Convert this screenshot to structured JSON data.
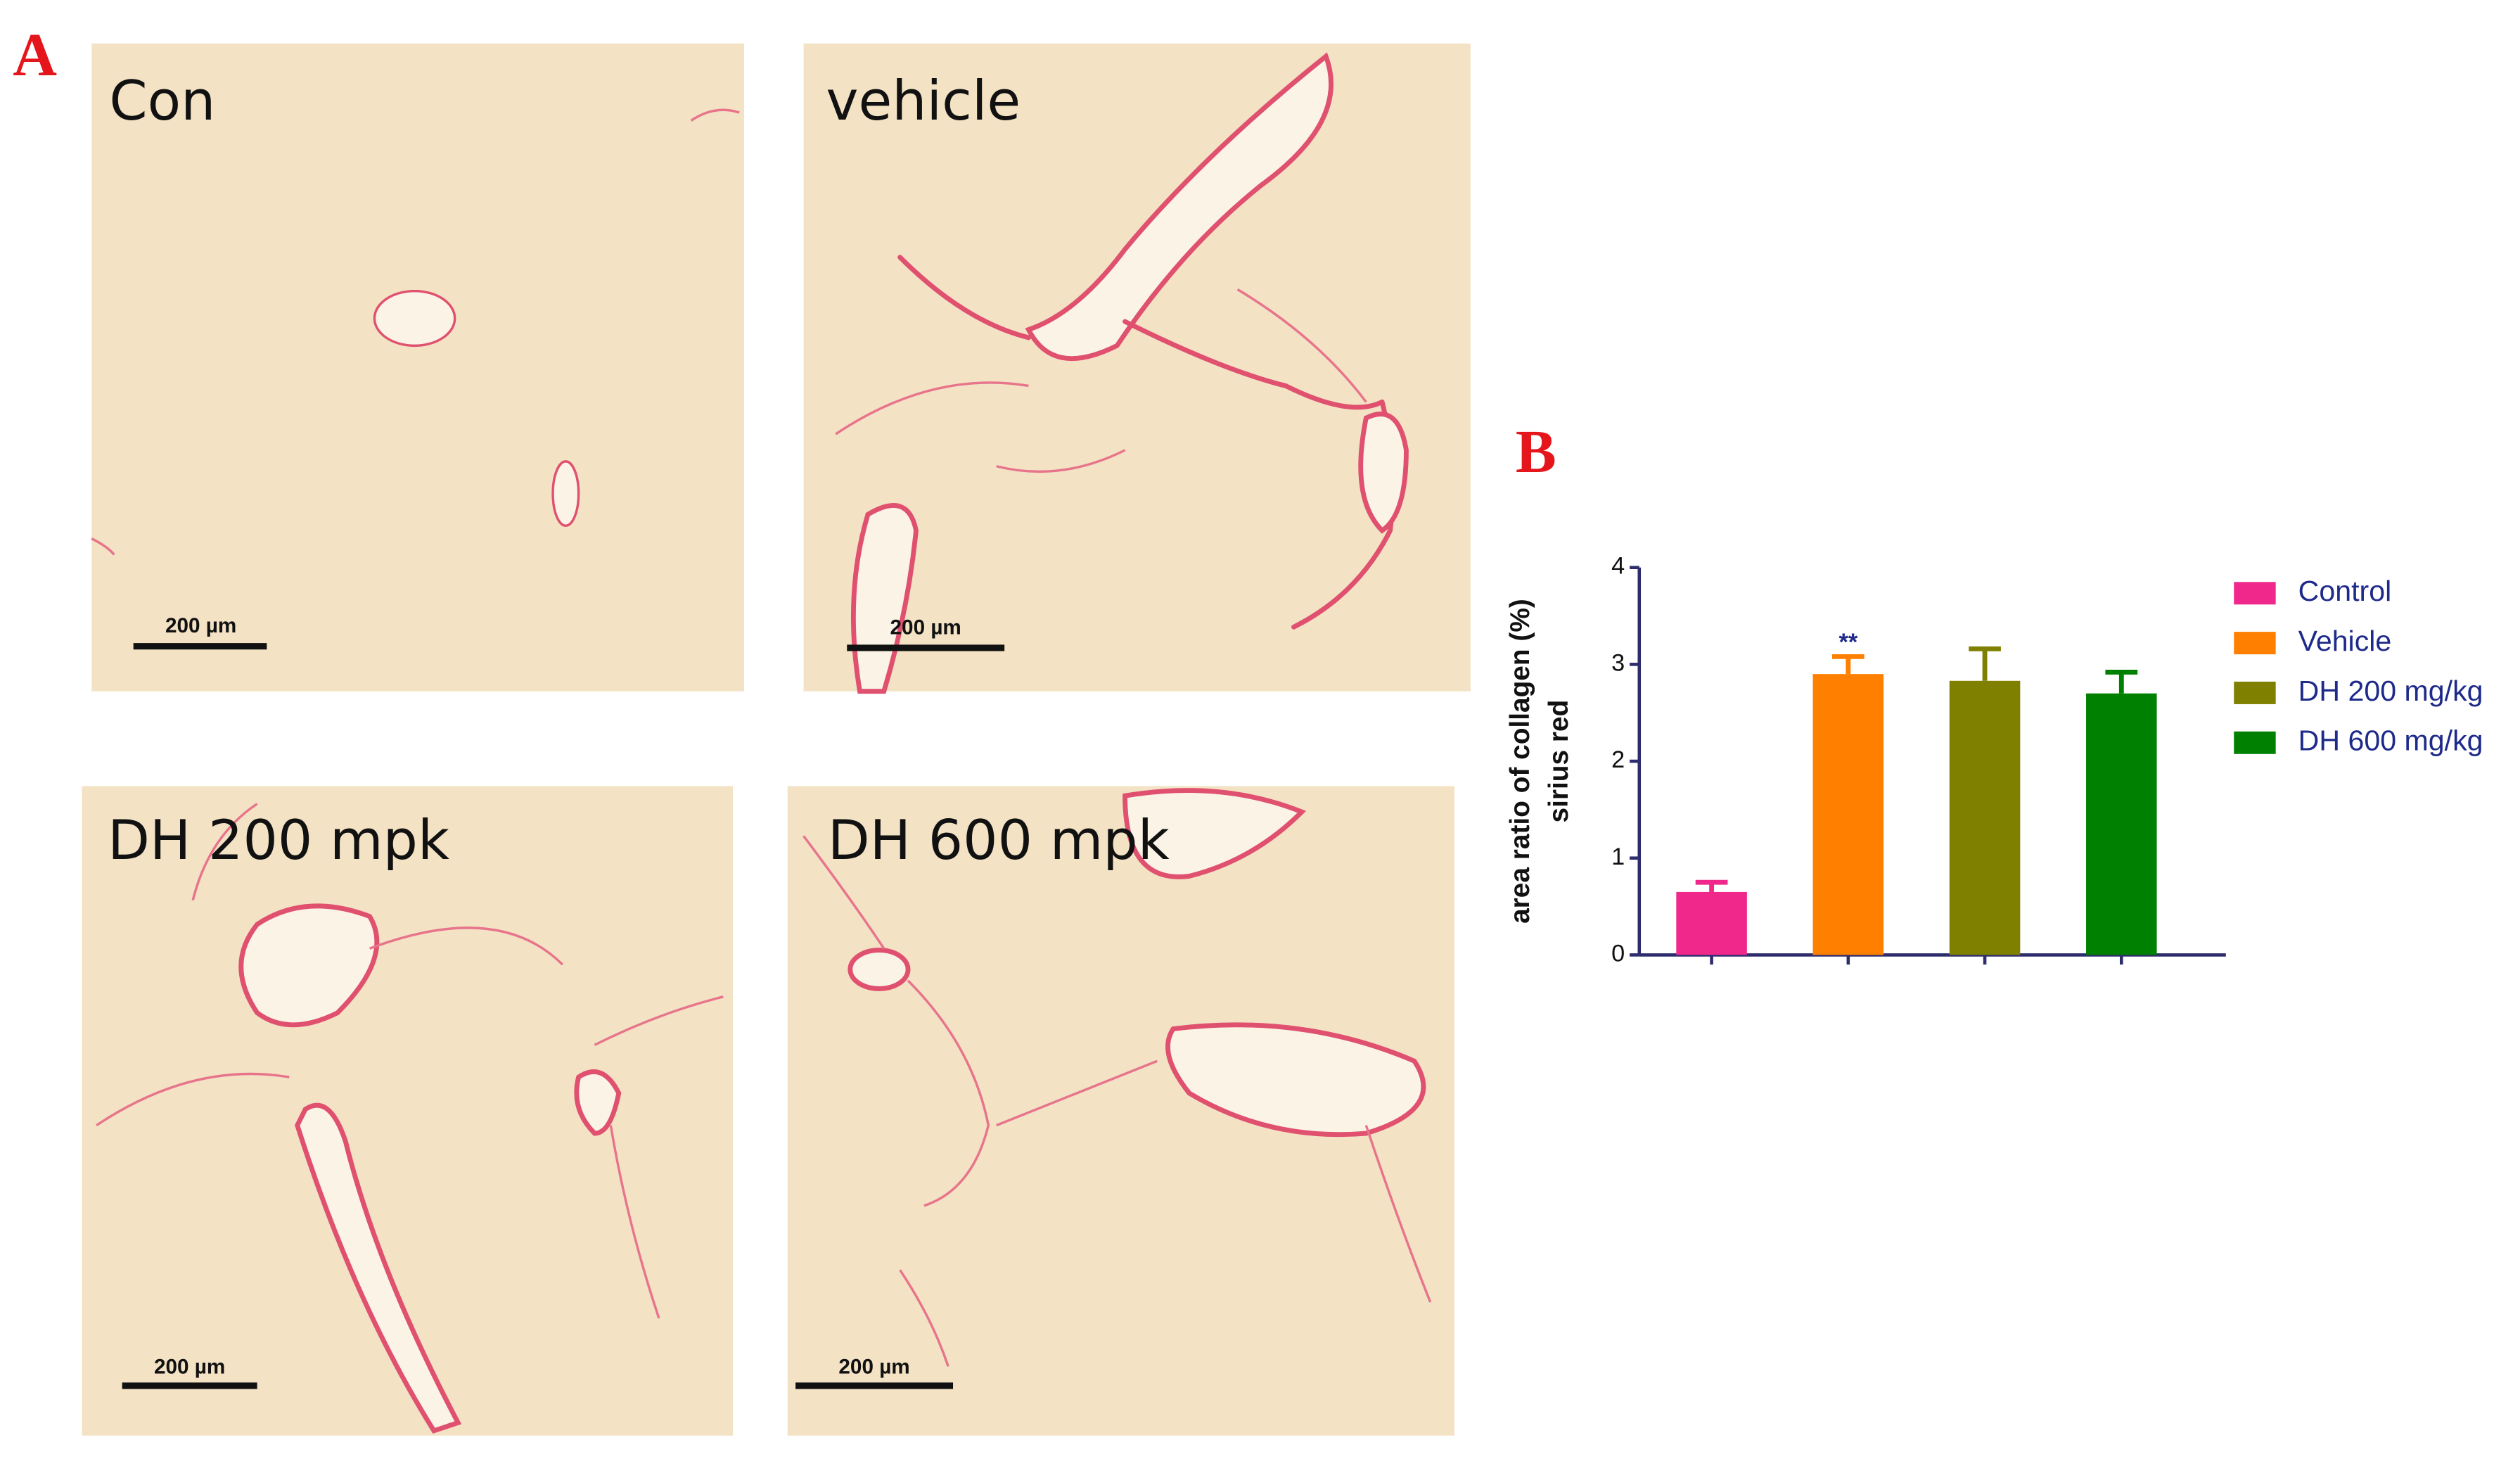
{
  "panel_a": {
    "label": "A",
    "images": [
      {
        "label": "Con",
        "scale_bar": "200 µm"
      },
      {
        "label": "vehicle",
        "scale_bar": "200 µm"
      },
      {
        "label": "DH 200 mpk",
        "scale_bar": "200 µm"
      },
      {
        "label": "DH 600 mpk",
        "scale_bar": "200 µm"
      }
    ]
  },
  "panel_b": {
    "label": "B"
  },
  "chart_data": {
    "type": "bar",
    "ylabel": [
      "area ratio of collagen (%)",
      "sirius red"
    ],
    "categories": [
      "Control",
      "Vehicle",
      "DH 200 mg/kg",
      "DH 600 mg/kg"
    ],
    "values": [
      0.65,
      2.9,
      2.83,
      2.7
    ],
    "errors": [
      0.1,
      0.18,
      0.33,
      0.22
    ],
    "colors": [
      "#f0288c",
      "#ff8000",
      "#808000",
      "#008000"
    ],
    "ylim": [
      0,
      4
    ],
    "yticks": [
      0,
      1,
      2,
      3,
      4
    ],
    "annotations": [
      {
        "text": "**",
        "category": "Vehicle"
      }
    ],
    "legend": "right"
  }
}
